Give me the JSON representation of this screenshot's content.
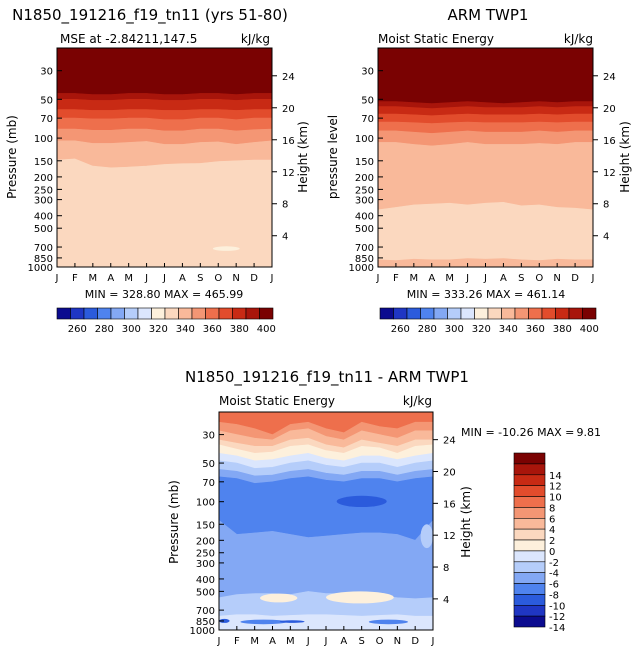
{
  "chart_data": [
    {
      "type": "heatmap",
      "title": "N1850_191216_f19_tn11 (yrs 51-80)",
      "subtitle": "MSE at -2.84211,147.5",
      "units": "kJ/kg",
      "ylabel": "Pressure (mb)",
      "ylabel_right": "Height (km)",
      "xticks": [
        "J",
        "F",
        "M",
        "A",
        "M",
        "J",
        "J",
        "A",
        "S",
        "O",
        "N",
        "D",
        "J"
      ],
      "yticks": [
        30,
        50,
        70,
        100,
        150,
        200,
        250,
        300,
        400,
        500,
        700,
        850,
        1000
      ],
      "yticks_right": [
        24,
        20,
        16,
        12,
        8,
        4
      ],
      "ylim": [
        1000,
        20
      ],
      "stats": "MIN = 328.80 MAX = 465.99",
      "bands": [
        {
          "top": 20,
          "bottom": [
            45,
            45,
            46,
            46,
            45,
            45,
            46,
            46,
            45,
            45,
            46,
            45,
            45
          ],
          "value": 410
        },
        {
          "top": "prev",
          "bottom": [
            50,
            50,
            51,
            51,
            50,
            50,
            51,
            51,
            50,
            50,
            51,
            50,
            50
          ],
          "value": 390
        },
        {
          "top": "prev",
          "bottom": [
            60,
            60,
            61,
            61,
            60,
            60,
            61,
            61,
            60,
            60,
            61,
            60,
            60
          ],
          "value": 380
        },
        {
          "top": "prev",
          "bottom": [
            70,
            70,
            71,
            71,
            70,
            70,
            72,
            72,
            70,
            70,
            72,
            70,
            70
          ],
          "value": 370
        },
        {
          "top": "prev",
          "bottom": [
            85,
            85,
            87,
            87,
            85,
            85,
            88,
            88,
            85,
            85,
            88,
            86,
            85
          ],
          "value": 360
        },
        {
          "top": "prev",
          "bottom": [
            105,
            105,
            110,
            110,
            108,
            106,
            112,
            112,
            108,
            107,
            112,
            108,
            105
          ],
          "value": 350
        },
        {
          "top": "prev",
          "bottom": [
            148,
            145,
            165,
            170,
            168,
            165,
            160,
            158,
            157,
            152,
            150,
            148,
            148
          ],
          "value": 340
        },
        {
          "top": "prev",
          "bottom": [
            1000,
            1000,
            1000,
            1000,
            1000,
            1000,
            1000,
            1000,
            1000,
            1000,
            1000,
            1000,
            1000
          ],
          "value": 330
        }
      ],
      "patches": [
        {
          "value": 320,
          "month_range": [
            8.7,
            10.2
          ],
          "pressure_range": [
            690,
            750
          ]
        }
      ]
    },
    {
      "type": "heatmap",
      "title": "ARM TWP1",
      "subtitle": "Moist Static Energy",
      "units": "kJ/kg",
      "ylabel": "pressure level",
      "ylabel_right": "Height (km)",
      "xticks": [
        "J",
        "F",
        "M",
        "A",
        "M",
        "J",
        "J",
        "A",
        "S",
        "O",
        "N",
        "D",
        "J"
      ],
      "yticks": [
        30,
        50,
        70,
        100,
        150,
        200,
        250,
        300,
        400,
        500,
        700,
        850,
        1000
      ],
      "yticks_right": [
        24,
        20,
        16,
        12,
        8,
        4
      ],
      "ylim": [
        1000,
        20
      ],
      "stats": "MIN = 333.26 MAX = 461.14",
      "bands": [
        {
          "top": 20,
          "bottom": [
            52,
            52,
            53,
            54,
            53,
            52,
            53,
            54,
            53,
            52,
            53,
            52,
            52
          ],
          "value": 410
        },
        {
          "top": "prev",
          "bottom": [
            57,
            57,
            58,
            59,
            58,
            57,
            58,
            58,
            58,
            57,
            58,
            57,
            57
          ],
          "value": 390
        },
        {
          "top": "prev",
          "bottom": [
            65,
            65,
            66,
            67,
            66,
            65,
            66,
            66,
            66,
            65,
            66,
            65,
            65
          ],
          "value": 380
        },
        {
          "top": "prev",
          "bottom": [
            75,
            75,
            76,
            77,
            76,
            75,
            76,
            76,
            76,
            75,
            76,
            75,
            75
          ],
          "value": 370
        },
        {
          "top": "prev",
          "bottom": [
            88,
            88,
            90,
            92,
            90,
            88,
            90,
            90,
            90,
            88,
            90,
            88,
            88
          ],
          "value": 360
        },
        {
          "top": "prev",
          "bottom": [
            108,
            108,
            112,
            115,
            112,
            108,
            112,
            112,
            112,
            110,
            112,
            108,
            108
          ],
          "value": 350
        },
        {
          "top": "prev",
          "bottom": [
            360,
            345,
            330,
            325,
            320,
            330,
            320,
            315,
            335,
            330,
            345,
            350,
            360
          ],
          "value": 340
        },
        {
          "top": "prev",
          "bottom": [
            880,
            890,
            870,
            880,
            880,
            860,
            870,
            860,
            880,
            890,
            870,
            880,
            880
          ],
          "value": 330
        },
        {
          "top": "prev",
          "bottom": [
            1000,
            1000,
            1000,
            1000,
            1000,
            1000,
            1000,
            1000,
            1000,
            1000,
            1000,
            1000,
            1000
          ],
          "value": 340
        }
      ],
      "patches": []
    },
    {
      "type": "heatmap",
      "title": "N1850_191216_f19_tn11 - ARM TWP1",
      "subtitle": "Moist Static Energy",
      "units": "kJ/kg",
      "ylabel": "Pressure (mb)",
      "ylabel_right": "Height (km)",
      "xticks": [
        "J",
        "F",
        "M",
        "A",
        "M",
        "J",
        "J",
        "A",
        "S",
        "O",
        "N",
        "D",
        "J"
      ],
      "yticks": [
        30,
        50,
        70,
        100,
        150,
        200,
        250,
        300,
        400,
        500,
        700,
        850,
        1000
      ],
      "yticks_right": [
        24,
        20,
        16,
        12,
        8,
        4
      ],
      "ylim": [
        1000,
        20
      ],
      "stats_label": "MIN = -10.26 MAX =",
      "stats_max": "9.81",
      "bands": [
        {
          "top": 20,
          "bottom": [
            24,
            25,
            27,
            30,
            25,
            24,
            27,
            29,
            24,
            26,
            27,
            24,
            24
          ],
          "value": 7
        },
        {
          "top": "prev",
          "bottom": [
            28,
            30,
            32,
            33,
            28,
            27,
            31,
            33,
            28,
            30,
            32,
            28,
            28
          ],
          "value": 5
        },
        {
          "top": "prev",
          "bottom": [
            33,
            35,
            37,
            37,
            33,
            32,
            36,
            38,
            33,
            35,
            37,
            33,
            33
          ],
          "value": 3
        },
        {
          "top": "prev",
          "bottom": [
            36,
            39,
            42,
            41,
            37,
            36,
            40,
            42,
            37,
            38,
            42,
            37,
            36
          ],
          "value": 1
        },
        {
          "top": "prev",
          "bottom": [
            42,
            44,
            48,
            47,
            44,
            42,
            46,
            48,
            44,
            44,
            47,
            44,
            42
          ],
          "value": -1
        },
        {
          "top": "prev",
          "bottom": [
            48,
            50,
            55,
            54,
            50,
            48,
            52,
            54,
            50,
            50,
            54,
            50,
            48
          ],
          "value": -3
        },
        {
          "top": "prev",
          "bottom": [
            56,
            58,
            63,
            62,
            58,
            56,
            60,
            62,
            58,
            58,
            62,
            58,
            56
          ],
          "value": -5
        },
        {
          "top": "prev",
          "bottom": [
            64,
            66,
            72,
            70,
            66,
            64,
            68,
            70,
            66,
            66,
            70,
            66,
            64
          ],
          "value": -7
        },
        {
          "top": "prev",
          "bottom": [
            140,
            180,
            175,
            170,
            180,
            190,
            185,
            180,
            175,
            175,
            180,
            200,
            140
          ],
          "value": -9
        },
        {
          "top": "prev",
          "bottom": [
            560,
            530,
            520,
            520,
            530,
            500,
            520,
            520,
            530,
            540,
            560,
            570,
            560
          ],
          "value": -7
        },
        {
          "top": "prev",
          "bottom": [
            780,
            760,
            760,
            780,
            770,
            760,
            760,
            770,
            780,
            770,
            760,
            780,
            780
          ],
          "value": -5
        },
        {
          "top": "prev",
          "bottom": [
            1000,
            1000,
            1000,
            1000,
            1000,
            1000,
            1000,
            1000,
            1000,
            1000,
            1000,
            1000,
            1000
          ],
          "value": -3
        }
      ],
      "patches": [
        {
          "value": -1,
          "month_range": [
            2.3,
            4.4
          ],
          "pressure_range": [
            520,
            610
          ]
        },
        {
          "value": -1,
          "month_range": [
            6.0,
            9.8
          ],
          "pressure_range": [
            500,
            620
          ]
        },
        {
          "value": -9,
          "month_range": [
            1.2,
            3.8
          ],
          "pressure_range": [
            830,
            900
          ]
        },
        {
          "value": -9,
          "month_range": [
            8.4,
            10.6
          ],
          "pressure_range": [
            830,
            900
          ]
        },
        {
          "value": -11,
          "month_range": [
            3.4,
            4.8
          ],
          "pressure_range": [
            840,
            880
          ]
        },
        {
          "value": -11,
          "month_range": [
            0.0,
            0.6
          ],
          "pressure_range": [
            820,
            880
          ]
        },
        {
          "value": -11,
          "month_range": [
            6.6,
            9.4
          ],
          "pressure_range": [
            90,
            110
          ]
        },
        {
          "value": -5,
          "month_range": [
            11.3,
            12.0
          ],
          "pressure_range": [
            150,
            230
          ]
        }
      ]
    }
  ],
  "colorbars": {
    "abs": {
      "labels": [
        260,
        280,
        300,
        320,
        340,
        360,
        380,
        400
      ],
      "colors": [
        "#0b0b8f",
        "#1f36c4",
        "#2b5bdc",
        "#4f83ee",
        "#83a8f4",
        "#b5cdfa",
        "#dbe6fd",
        "#fdf0dc",
        "#fbd8bf",
        "#f9b99a",
        "#f49674",
        "#ee6f4c",
        "#e24c2c",
        "#c82a14",
        "#a8150b",
        "#7a0202"
      ],
      "levels": [
        250,
        260,
        270,
        280,
        290,
        300,
        310,
        320,
        330,
        340,
        350,
        360,
        370,
        380,
        390,
        400,
        410
      ]
    },
    "diff": {
      "labels": [
        14,
        12,
        10,
        8,
        6,
        4,
        2,
        0,
        -2,
        -4,
        -6,
        -8,
        -10,
        -12,
        -14
      ],
      "colors": [
        "#7a0202",
        "#a8150b",
        "#c82a14",
        "#e24c2c",
        "#ee6f4c",
        "#f49674",
        "#f9b99a",
        "#fbd8bf",
        "#fdf0dc",
        "#dbe6fd",
        "#b5cdfa",
        "#83a8f4",
        "#4f83ee",
        "#2b5bdc",
        "#1f36c4",
        "#0b0b8f"
      ],
      "levels": [
        16,
        14,
        12,
        10,
        8,
        6,
        4,
        2,
        0,
        -2,
        -4,
        -6,
        -8,
        -10,
        -12,
        -14,
        -16
      ]
    }
  }
}
